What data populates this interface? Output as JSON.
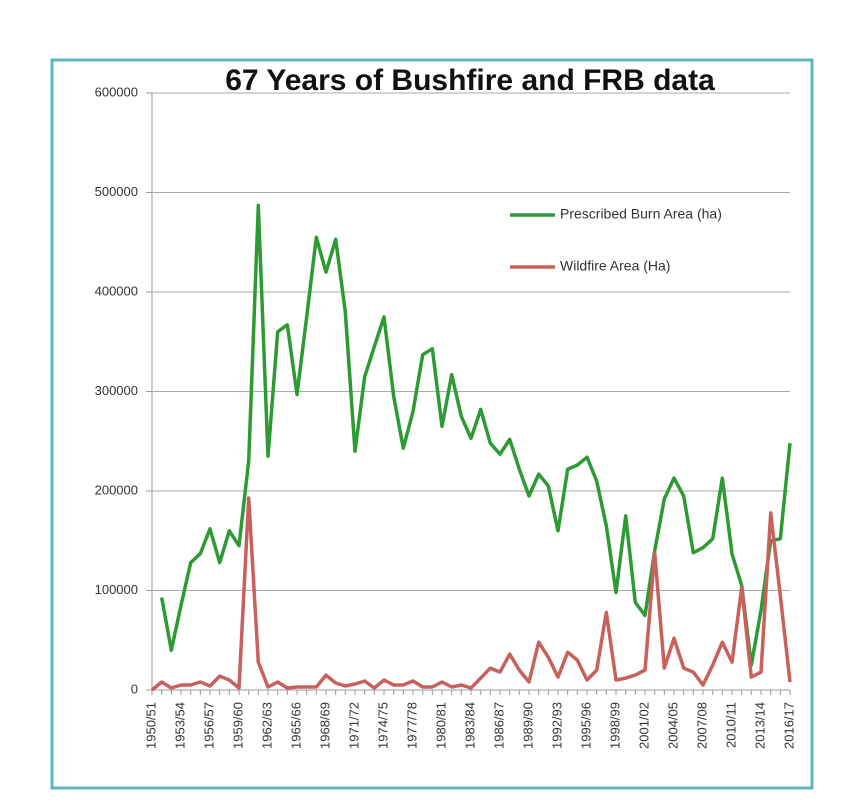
{
  "chart_data": {
    "type": "line",
    "title": "67 Years of Bushfire and FRB data",
    "categories": [
      "1950/51",
      null,
      null,
      "1953/54",
      null,
      null,
      "1956/57",
      null,
      null,
      "1959/60",
      null,
      null,
      "1962/63",
      null,
      null,
      "1965/66",
      null,
      null,
      "1968/69",
      null,
      null,
      "1971/72",
      null,
      null,
      "1974/75",
      null,
      null,
      "1977/78",
      null,
      null,
      "1980/81",
      null,
      null,
      "1983/84",
      null,
      null,
      "1986/87",
      null,
      null,
      "1989/90",
      null,
      null,
      "1992/93",
      null,
      null,
      "1995/96",
      null,
      null,
      "1998/99",
      null,
      null,
      "2001/02",
      null,
      null,
      "2004/05",
      null,
      null,
      "2007/08",
      null,
      null,
      "2010/11",
      null,
      null,
      "2013/14",
      null,
      null,
      "2016/17"
    ],
    "series": [
      {
        "name": "Prescribed Burn Area (ha)",
        "color": "#2e9a34",
        "values": [
          null,
          93000,
          40000,
          85000,
          128000,
          137000,
          162000,
          128000,
          160000,
          145000,
          230000,
          487000,
          235000,
          360000,
          367000,
          297000,
          375000,
          455000,
          420000,
          453000,
          380000,
          240000,
          315000,
          345000,
          375000,
          295000,
          243000,
          280000,
          337000,
          343000,
          265000,
          317000,
          275000,
          253000,
          282000,
          248000,
          237000,
          252000,
          222000,
          195000,
          217000,
          205000,
          160000,
          222000,
          226000,
          234000,
          210000,
          165000,
          98000,
          175000,
          88000,
          75000,
          140000,
          192000,
          213000,
          195000,
          138000,
          143000,
          152000,
          213000,
          137000,
          105000,
          25000,
          80000,
          150000,
          152000,
          248000
        ]
      },
      {
        "name": "Wildfire Area (Ha)",
        "color": "#c8605c",
        "values": [
          0,
          8000,
          2000,
          5000,
          5000,
          8000,
          4000,
          14000,
          10000,
          2000,
          193000,
          28000,
          3000,
          8000,
          2000,
          3000,
          3000,
          3000,
          15000,
          7000,
          4000,
          6000,
          9000,
          2000,
          10000,
          5000,
          5000,
          9000,
          3000,
          3000,
          8000,
          3000,
          5000,
          2000,
          12000,
          22000,
          18000,
          36000,
          20000,
          8000,
          48000,
          33000,
          13000,
          38000,
          30000,
          10000,
          20000,
          78000,
          10000,
          12000,
          15000,
          20000,
          138000,
          22000,
          52000,
          22000,
          18000,
          5000,
          25000,
          48000,
          28000,
          103000,
          13000,
          18000,
          178000,
          95000,
          8000
        ]
      }
    ],
    "ylim": [
      0,
      600000
    ],
    "yticks": [
      0,
      100000,
      200000,
      300000,
      400000,
      500000,
      600000
    ],
    "grid": true
  }
}
